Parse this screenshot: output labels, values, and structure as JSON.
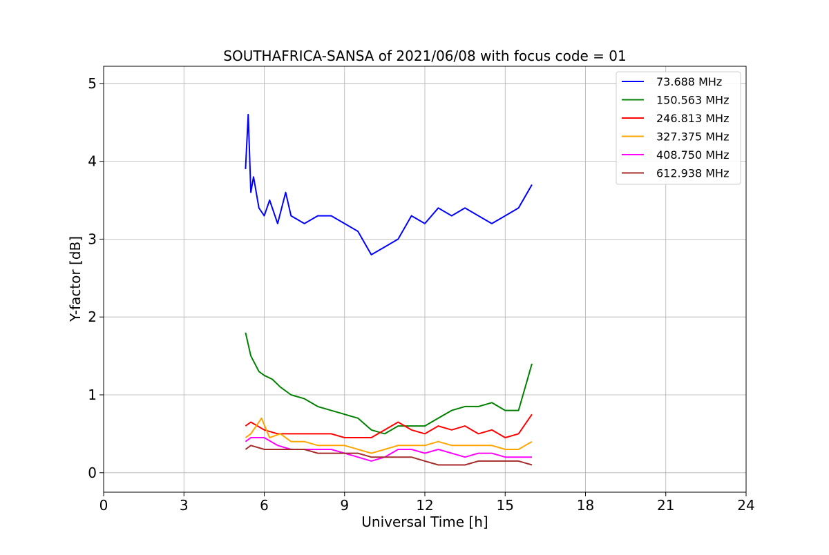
{
  "chart_data": {
    "type": "line",
    "title": "SOUTHAFRICA-SANSA of 2021/06/08 with focus code = 01",
    "xlabel": "Universal Time [h]",
    "ylabel": "Y-factor [dB]",
    "xlim": [
      0,
      24
    ],
    "ylim": [
      -0.25,
      5.22
    ],
    "xticks": [
      0,
      3,
      6,
      9,
      12,
      15,
      18,
      21,
      24
    ],
    "yticks": [
      0,
      1,
      2,
      3,
      4,
      5
    ],
    "grid": true,
    "legend_position": "top-right",
    "series": [
      {
        "name": "73.688 MHz",
        "color": "#0000ff",
        "x": [
          5.3,
          5.4,
          5.5,
          5.6,
          5.8,
          6.0,
          6.2,
          6.5,
          6.8,
          7.0,
          7.5,
          8.0,
          8.5,
          9.0,
          9.5,
          10.0,
          10.5,
          11.0,
          11.5,
          12.0,
          12.5,
          13.0,
          13.5,
          14.0,
          14.5,
          15.0,
          15.5,
          16.0
        ],
        "values": [
          3.9,
          4.6,
          3.6,
          3.8,
          3.4,
          3.3,
          3.5,
          3.2,
          3.6,
          3.3,
          3.2,
          3.3,
          3.3,
          3.2,
          3.1,
          2.8,
          2.9,
          3.0,
          3.3,
          3.2,
          3.4,
          3.3,
          3.4,
          3.3,
          3.2,
          3.3,
          3.4,
          3.7
        ]
      },
      {
        "name": "150.563 MHz",
        "color": "#008000",
        "x": [
          5.3,
          5.5,
          5.8,
          6.0,
          6.3,
          6.6,
          7.0,
          7.5,
          8.0,
          8.5,
          9.0,
          9.5,
          10.0,
          10.5,
          11.0,
          11.5,
          12.0,
          12.5,
          13.0,
          13.5,
          14.0,
          14.5,
          15.0,
          15.5,
          16.0
        ],
        "values": [
          1.8,
          1.5,
          1.3,
          1.25,
          1.2,
          1.1,
          1.0,
          0.95,
          0.85,
          0.8,
          0.75,
          0.7,
          0.55,
          0.5,
          0.6,
          0.6,
          0.6,
          0.7,
          0.8,
          0.85,
          0.85,
          0.9,
          0.8,
          0.8,
          1.4
        ]
      },
      {
        "name": "246.813 MHz",
        "color": "#ff0000",
        "x": [
          5.3,
          5.5,
          6.0,
          6.5,
          7.0,
          7.5,
          8.0,
          8.5,
          9.0,
          9.5,
          10.0,
          10.5,
          11.0,
          11.5,
          12.0,
          12.5,
          13.0,
          13.5,
          14.0,
          14.5,
          15.0,
          15.5,
          16.0
        ],
        "values": [
          0.6,
          0.65,
          0.55,
          0.5,
          0.5,
          0.5,
          0.5,
          0.5,
          0.45,
          0.45,
          0.45,
          0.55,
          0.65,
          0.55,
          0.5,
          0.6,
          0.55,
          0.6,
          0.5,
          0.55,
          0.45,
          0.5,
          0.75
        ]
      },
      {
        "name": "327.375 MHz",
        "color": "#ffa500",
        "x": [
          5.3,
          5.5,
          5.9,
          6.2,
          6.6,
          7.0,
          7.5,
          8.0,
          8.5,
          9.0,
          9.5,
          10.0,
          10.5,
          11.0,
          11.5,
          12.0,
          12.5,
          13.0,
          13.5,
          14.0,
          14.5,
          15.0,
          15.5,
          16.0
        ],
        "values": [
          0.45,
          0.5,
          0.7,
          0.45,
          0.5,
          0.4,
          0.4,
          0.35,
          0.35,
          0.35,
          0.3,
          0.25,
          0.3,
          0.35,
          0.35,
          0.35,
          0.4,
          0.35,
          0.35,
          0.35,
          0.35,
          0.3,
          0.3,
          0.4
        ]
      },
      {
        "name": "408.750 MHz",
        "color": "#ff00ff",
        "x": [
          5.3,
          5.5,
          6.0,
          6.5,
          7.0,
          7.5,
          8.0,
          8.5,
          9.0,
          9.5,
          10.0,
          10.5,
          11.0,
          11.5,
          12.0,
          12.5,
          13.0,
          13.5,
          14.0,
          14.5,
          15.0,
          15.5,
          16.0
        ],
        "values": [
          0.4,
          0.45,
          0.45,
          0.35,
          0.3,
          0.3,
          0.3,
          0.3,
          0.25,
          0.2,
          0.15,
          0.2,
          0.3,
          0.3,
          0.25,
          0.3,
          0.25,
          0.2,
          0.25,
          0.25,
          0.2,
          0.2,
          0.2
        ]
      },
      {
        "name": "612.938 MHz",
        "color": "#a52a2a",
        "x": [
          5.3,
          5.5,
          6.0,
          6.5,
          7.0,
          7.5,
          8.0,
          8.5,
          9.0,
          9.5,
          10.0,
          10.5,
          11.0,
          11.5,
          12.0,
          12.5,
          13.0,
          13.5,
          14.0,
          14.5,
          15.0,
          15.5,
          16.0
        ],
        "values": [
          0.3,
          0.35,
          0.3,
          0.3,
          0.3,
          0.3,
          0.25,
          0.25,
          0.25,
          0.25,
          0.2,
          0.2,
          0.2,
          0.2,
          0.15,
          0.1,
          0.1,
          0.1,
          0.15,
          0.15,
          0.15,
          0.15,
          0.1
        ]
      }
    ]
  }
}
